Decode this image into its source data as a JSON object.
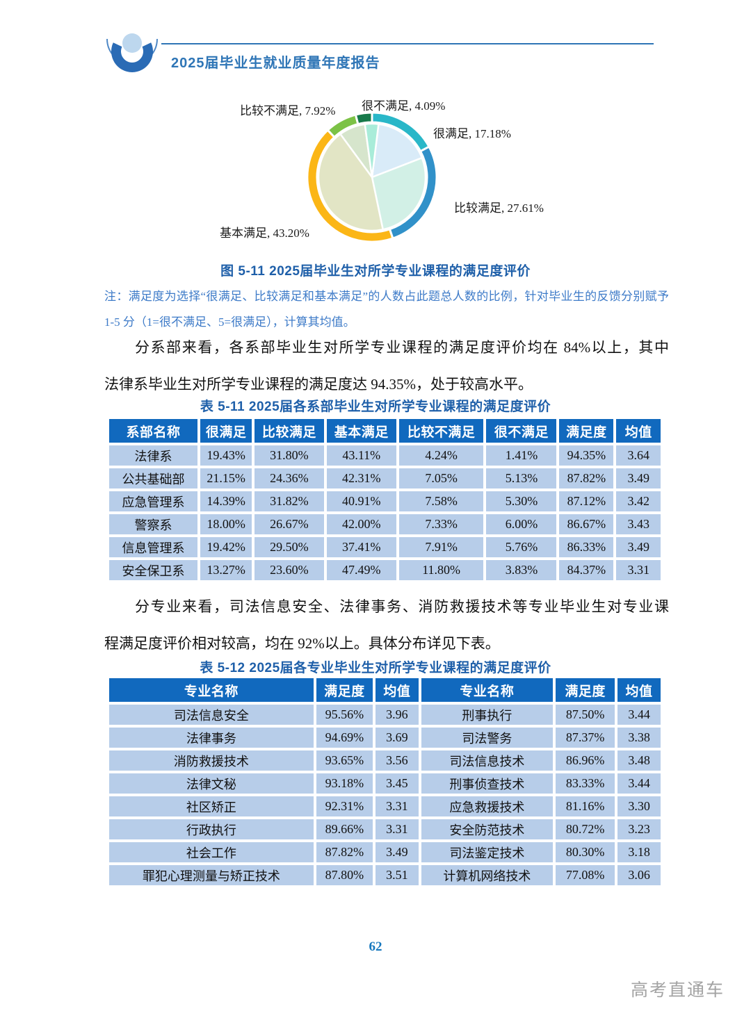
{
  "header": {
    "title": "2025届毕业生就业质量年度报告"
  },
  "chart_data": {
    "type": "pie",
    "title": "2025届毕业生对所学专业课程的满足度评价",
    "categories": [
      "很满足",
      "比较满足",
      "基本满足",
      "比较不满足",
      "很不满足"
    ],
    "values": [
      17.18,
      27.61,
      43.2,
      7.92,
      4.09
    ],
    "labels": {
      "very_satisfied": "很满足, 17.18%",
      "relatively_satisfied": "比较满足, 27.61%",
      "basically_satisfied": "基本满足, 43.20%",
      "relatively_dissatisfied": "比较不满足, 7.92%",
      "very_dissatisfied": "很不满足, 4.09%"
    },
    "outer_colors": [
      "#29b7c8",
      "#3191c9",
      "#fbb616",
      "#7cc246",
      "#17794a"
    ],
    "inner_colors": [
      "#d9ebf8",
      "#d2f0e6",
      "#e2e5c5",
      "#d6e5cc",
      "#a9ecd9"
    ],
    "legend_position": "none",
    "donut_with_inner_pie": true
  },
  "figure_caption": "图 5-11  2025届毕业生对所学专业课程的满足度评价",
  "note": {
    "line1": "注：满足度为选择“很满足、比较满足和基本满足”的人数占此题总人数的比例，针对毕业生的反馈分别赋予",
    "line2": "1-5 分（1=很不满足、5=很满足），计算其均值。"
  },
  "para1": {
    "line1": "分系部来看，各系部毕业生对所学专业课程的满足度评价均在 84%以上，其中",
    "line2": "法律系毕业生对所学专业课程的满足度达 94.35%，处于较高水平。"
  },
  "para2": {
    "line1": "分专业来看，司法信息安全、法律事务、消防救援技术等专业毕业生对专业课",
    "line2": "程满足度评价相对较高，均在 92%以上。具体分布详见下表。"
  },
  "table1": {
    "caption": "表 5-11  2025届各系部毕业生对所学专业课程的满足度评价",
    "headers": [
      "系部名称",
      "很满足",
      "比较满足",
      "基本满足",
      "比较不满足",
      "很不满足",
      "满足度",
      "均值"
    ],
    "col_widths_pct": [
      16.6,
      9.7,
      13.0,
      13.1,
      15.9,
      13.2,
      10.2,
      8.3
    ],
    "rows": [
      [
        "法律系",
        "19.43%",
        "31.80%",
        "43.11%",
        "4.24%",
        "1.41%",
        "94.35%",
        "3.64"
      ],
      [
        "公共基础部",
        "21.15%",
        "24.36%",
        "42.31%",
        "7.05%",
        "5.13%",
        "87.82%",
        "3.49"
      ],
      [
        "应急管理系",
        "14.39%",
        "31.82%",
        "40.91%",
        "7.58%",
        "5.30%",
        "87.12%",
        "3.42"
      ],
      [
        "警察系",
        "18.00%",
        "26.67%",
        "42.00%",
        "7.33%",
        "6.00%",
        "86.67%",
        "3.43"
      ],
      [
        "信息管理系",
        "19.42%",
        "29.50%",
        "37.41%",
        "7.91%",
        "5.76%",
        "86.33%",
        "3.49"
      ],
      [
        "安全保卫系",
        "13.27%",
        "23.60%",
        "47.49%",
        "11.80%",
        "3.83%",
        "84.37%",
        "3.31"
      ]
    ]
  },
  "table2": {
    "caption": "表 5-12  2025届各专业毕业生对所学专业课程的满足度评价",
    "headers": [
      "专业名称",
      "满足度",
      "均值",
      "专业名称",
      "满足度",
      "均值"
    ],
    "col_widths_pct": [
      38.0,
      10.5,
      8.0,
      24.5,
      11.0,
      8.0
    ],
    "rows": [
      [
        "司法信息安全",
        "95.56%",
        "3.96",
        "刑事执行",
        "87.50%",
        "3.44"
      ],
      [
        "法律事务",
        "94.69%",
        "3.69",
        "司法警务",
        "87.37%",
        "3.38"
      ],
      [
        "消防救援技术",
        "93.65%",
        "3.56",
        "司法信息技术",
        "86.96%",
        "3.48"
      ],
      [
        "法律文秘",
        "93.18%",
        "3.45",
        "刑事侦查技术",
        "83.33%",
        "3.44"
      ],
      [
        "社区矫正",
        "92.31%",
        "3.31",
        "应急救援技术",
        "81.16%",
        "3.30"
      ],
      [
        "行政执行",
        "89.66%",
        "3.31",
        "安全防范技术",
        "80.72%",
        "3.23"
      ],
      [
        "社会工作",
        "87.82%",
        "3.49",
        "司法鉴定技术",
        "80.30%",
        "3.18"
      ],
      [
        "罪犯心理测量与矫正技术",
        "87.80%",
        "3.51",
        "计算机网络技术",
        "77.08%",
        "3.06"
      ]
    ]
  },
  "footer": {
    "page_number": "62",
    "watermark": "高考直通车"
  }
}
